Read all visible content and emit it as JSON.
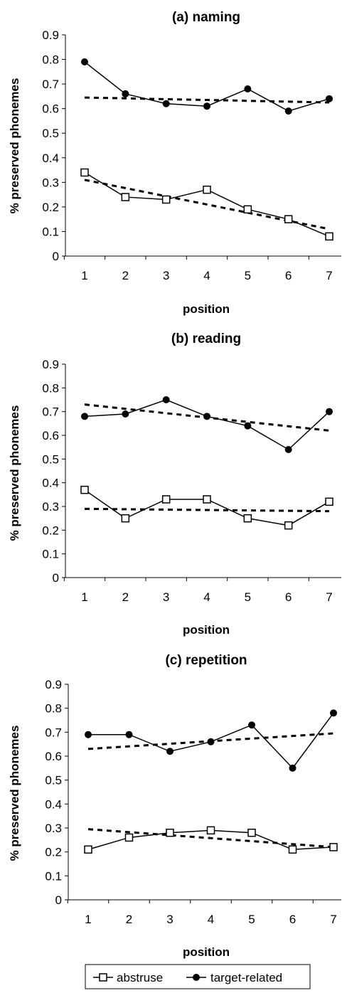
{
  "chart_data": [
    {
      "type": "line",
      "title": "(a) naming",
      "xlabel": "position",
      "ylabel": "% preserved phonemes",
      "x": [
        1,
        2,
        3,
        4,
        5,
        6,
        7
      ],
      "ylim": [
        0,
        0.9
      ],
      "yticks": [
        "0",
        "0.1",
        "0.2",
        "0.3",
        "0.4",
        "0.5",
        "0.6",
        "0.7",
        "0.8",
        "0.9"
      ],
      "xticks": [
        "1",
        "2",
        "3",
        "4",
        "5",
        "6",
        "7"
      ],
      "series": [
        {
          "name": "abstruse",
          "marker": "open-square",
          "values": [
            0.34,
            0.24,
            0.23,
            0.27,
            0.19,
            0.15,
            0.08
          ]
        },
        {
          "name": "target-related",
          "marker": "filled-circle",
          "values": [
            0.79,
            0.66,
            0.62,
            0.61,
            0.68,
            0.59,
            0.64
          ]
        }
      ],
      "trendlines": [
        {
          "style": "dashed",
          "start": 0.31,
          "end": 0.11
        },
        {
          "style": "dashed",
          "start": 0.645,
          "end": 0.625
        }
      ],
      "grid": false
    },
    {
      "type": "line",
      "title": "(b) reading",
      "xlabel": "position",
      "ylabel": "% preserved phonemes",
      "x": [
        1,
        2,
        3,
        4,
        5,
        6,
        7
      ],
      "ylim": [
        0,
        0.9
      ],
      "yticks": [
        "0",
        "0.1",
        "0.2",
        "0.3",
        "0.4",
        "0.5",
        "0.6",
        "0.7",
        "0.8",
        "0.9"
      ],
      "xticks": [
        "1",
        "2",
        "3",
        "4",
        "5",
        "6",
        "7"
      ],
      "series": [
        {
          "name": "abstruse",
          "marker": "open-square",
          "values": [
            0.37,
            0.25,
            0.33,
            0.33,
            0.25,
            0.22,
            0.32
          ]
        },
        {
          "name": "target-related",
          "marker": "filled-circle",
          "values": [
            0.68,
            0.69,
            0.75,
            0.68,
            0.64,
            0.54,
            0.7
          ]
        }
      ],
      "trendlines": [
        {
          "style": "dashed",
          "start": 0.29,
          "end": 0.28
        },
        {
          "style": "dashed",
          "start": 0.73,
          "end": 0.62
        }
      ],
      "grid": false
    },
    {
      "type": "line",
      "title": "(c) repetition",
      "xlabel": "position",
      "ylabel": "% preserved phonemes",
      "x": [
        1,
        2,
        3,
        4,
        5,
        6,
        7
      ],
      "ylim": [
        0,
        0.9
      ],
      "yticks": [
        "0",
        "0.1",
        "0.2",
        "0.3",
        "0.4",
        "0.5",
        "0.6",
        "0.7",
        "0.8",
        "0.9"
      ],
      "xticks": [
        "1",
        "2",
        "3",
        "4",
        "5",
        "6",
        "7"
      ],
      "series": [
        {
          "name": "abstruse",
          "marker": "open-square",
          "values": [
            0.21,
            0.26,
            0.28,
            0.29,
            0.28,
            0.21,
            0.22
          ]
        },
        {
          "name": "target-related",
          "marker": "filled-circle",
          "values": [
            0.69,
            0.69,
            0.62,
            0.66,
            0.73,
            0.55,
            0.78
          ]
        }
      ],
      "trendlines": [
        {
          "style": "dashed",
          "start": 0.295,
          "end": 0.22
        },
        {
          "style": "dashed",
          "start": 0.63,
          "end": 0.695
        }
      ],
      "grid": false
    }
  ],
  "legend": {
    "placement": "bottom-center",
    "items": [
      {
        "label": "abstruse",
        "marker": "open-square"
      },
      {
        "label": "target-related",
        "marker": "filled-circle"
      }
    ]
  }
}
